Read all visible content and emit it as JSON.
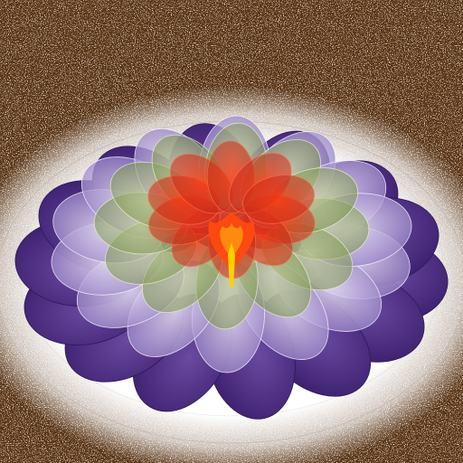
{
  "artwork": {
    "subject": "fractal-flower",
    "colors": {
      "background": "#5a3414",
      "background_speckle": "#ffffff",
      "glow": "#ffffff",
      "outer_petals": "#4b2a7a",
      "lavender_petals": "#c6b8e4",
      "green_petals": "#8fa860",
      "red_petals": "#e0301a",
      "core": "#ff5010",
      "stamen": "#ffd000"
    }
  }
}
